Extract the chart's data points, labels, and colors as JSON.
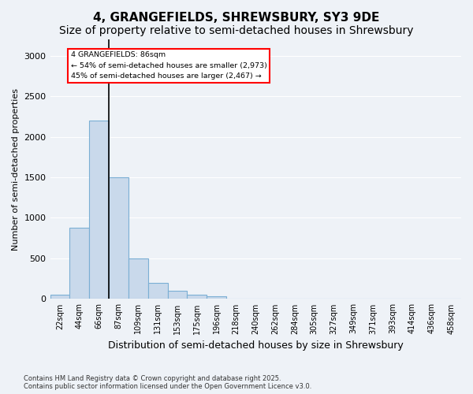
{
  "title1": "4, GRANGEFIELDS, SHREWSBURY, SY3 9DE",
  "title2": "Size of property relative to semi-detached houses in Shrewsbury",
  "xlabel": "Distribution of semi-detached houses by size in Shrewsbury",
  "ylabel": "Number of semi-detached properties",
  "bin_labels": [
    "22sqm",
    "44sqm",
    "66sqm",
    "87sqm",
    "109sqm",
    "131sqm",
    "153sqm",
    "175sqm",
    "196sqm",
    "218sqm",
    "240sqm",
    "262sqm",
    "284sqm",
    "305sqm",
    "327sqm",
    "349sqm",
    "371sqm",
    "393sqm",
    "414sqm",
    "436sqm",
    "458sqm"
  ],
  "bar_heights": [
    50,
    880,
    2200,
    1500,
    500,
    200,
    100,
    50,
    30,
    5,
    0,
    0,
    0,
    0,
    0,
    0,
    0,
    0,
    0,
    0,
    0
  ],
  "bar_color": "#c9d9eb",
  "bar_edge_color": "#7bafd4",
  "vline_x": 2.5,
  "annotation_text_line1": "4 GRANGEFIELDS: 86sqm",
  "annotation_text_line2": "← 54% of semi-detached houses are smaller (2,973)",
  "annotation_text_line3": "45% of semi-detached houses are larger (2,467) →",
  "footer_line1": "Contains HM Land Registry data © Crown copyright and database right 2025.",
  "footer_line2": "Contains public sector information licensed under the Open Government Licence v3.0.",
  "ylim": [
    0,
    3200
  ],
  "yticks": [
    0,
    500,
    1000,
    1500,
    2000,
    2500,
    3000
  ],
  "bg_color": "#eef2f7",
  "plot_bg_color": "#eef2f7",
  "grid_color": "#ffffff",
  "title_fontsize": 11,
  "subtitle_fontsize": 10
}
